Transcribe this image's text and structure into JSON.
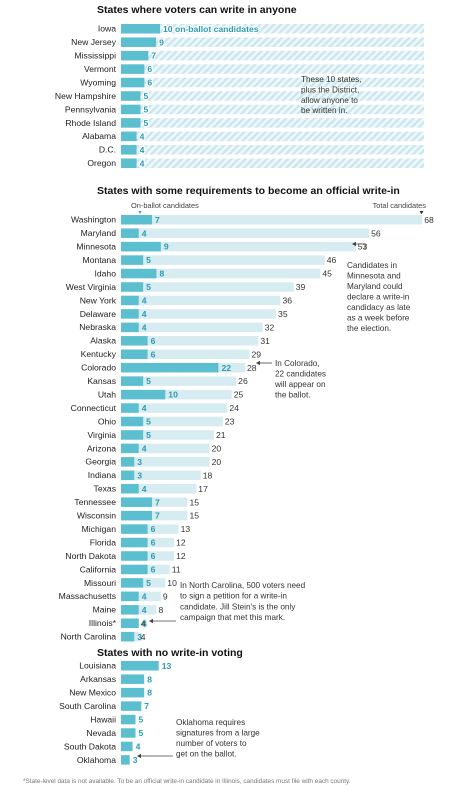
{
  "chart_data": [
    {
      "type": "bar",
      "title": "States where voters can write in anyone",
      "categories": [
        "Iowa",
        "New Jersey",
        "Mississippi",
        "Vermont",
        "Wyoming",
        "New Hampshire",
        "Pennsylvania",
        "Rhode Island",
        "Alabama",
        "D.C.",
        "Oregon"
      ],
      "series": [
        {
          "values": [
            10,
            9,
            7,
            6,
            6,
            5,
            5,
            5,
            4,
            4,
            4
          ]
        }
      ],
      "first_label_suffix": " on-ballot candidates",
      "annotations": [
        {
          "text": [
            "These 10 states,",
            "plus the District,",
            "allow anyone to",
            "be written in."
          ]
        }
      ]
    },
    {
      "type": "bar",
      "title": "States with some requirements to become an official write-in",
      "legend": {
        "on_ballot": "On-ballot candidates",
        "total": "Total candidates"
      },
      "categories": [
        "Washington",
        "Maryland",
        "Minnesota",
        "Montana",
        "Idaho",
        "West Virginia",
        "New York",
        "Delaware",
        "Nebraska",
        "Alaska",
        "Kentucky",
        "Colorado",
        "Kansas",
        "Utah",
        "Connecticut",
        "Ohio",
        "Virginia",
        "Arizona",
        "Georgia",
        "Indiana",
        "Texas",
        "Tennessee",
        "Wisconsin",
        "Michigan",
        "Florida",
        "North Dakota",
        "California",
        "Missouri",
        "Massachusetts",
        "Maine",
        "Illinois*",
        "North Carolina"
      ],
      "series": [
        {
          "name": "On-ballot candidates",
          "values": [
            7,
            4,
            9,
            5,
            8,
            5,
            4,
            4,
            4,
            6,
            6,
            22,
            5,
            10,
            4,
            5,
            5,
            4,
            3,
            3,
            4,
            7,
            7,
            6,
            6,
            6,
            6,
            5,
            4,
            4,
            4,
            3
          ]
        },
        {
          "name": "Total candidates",
          "values": [
            68,
            56,
            53,
            46,
            45,
            39,
            36,
            35,
            32,
            31,
            29,
            28,
            26,
            25,
            24,
            23,
            21,
            20,
            20,
            18,
            17,
            15,
            15,
            13,
            12,
            12,
            11,
            10,
            9,
            8,
            4,
            4
          ]
        }
      ],
      "annotations": [
        {
          "text": [
            "Candidates in",
            "Minnesota and",
            "Maryland could",
            "declare a write-in",
            "candidacy as late",
            "as a week before",
            "the election."
          ]
        },
        {
          "text": [
            "In Colorado,",
            "22 candidates",
            "will appear on",
            "the ballot."
          ]
        },
        {
          "text": [
            "In North Carolina, 500 voters need",
            "to sign a petition for a write-in",
            "candidate. Jill Stein's is the only",
            "campaign that met this mark."
          ]
        }
      ]
    },
    {
      "type": "bar",
      "title": "States with no write-in voting",
      "categories": [
        "Louisiana",
        "Arkansas",
        "New Mexico",
        "South Carolina",
        "Hawaii",
        "Nevada",
        "South Dakota",
        "Oklahoma"
      ],
      "series": [
        {
          "values": [
            13,
            8,
            8,
            7,
            5,
            5,
            4,
            3
          ]
        }
      ],
      "annotations": [
        {
          "text": [
            "Oklahoma requires",
            "signatures from a large",
            "number of voters to",
            "get on the ballot."
          ]
        }
      ]
    }
  ],
  "footnote": "*State-level data is not available. To be an official write-in candidate in Illinois, candidates must file with each county.",
  "colors": {
    "on_ballot": "#5cbfcf",
    "total": "#d6ecf1",
    "hatch": "#c9e6ee",
    "label": "#2b9bb0"
  }
}
